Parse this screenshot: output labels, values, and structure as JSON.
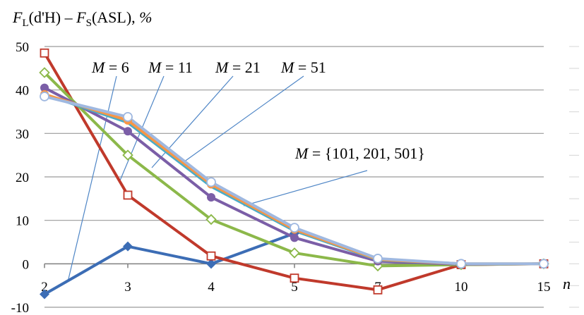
{
  "chart_data": {
    "type": "line",
    "title": "",
    "ylabel": "F_L(d'H) − F_S(ASL), %",
    "xlabel": "n",
    "categories": [
      "2",
      "3",
      "4",
      "5",
      "7",
      "10",
      "15"
    ],
    "ylim": [
      -10,
      50
    ],
    "yticks": [
      -10,
      0,
      10,
      20,
      30,
      40,
      50
    ],
    "grid": true,
    "legend": "none",
    "series": [
      {
        "name": "M = 6",
        "values": [
          -7,
          4,
          0,
          7,
          null,
          null,
          null
        ],
        "color": "#3c6db5",
        "marker": "diamond-filled"
      },
      {
        "name": "M = 11",
        "values": [
          48.5,
          15.8,
          1.8,
          -3.3,
          -6,
          -0.2,
          0
        ],
        "color": "#c0392b",
        "marker": "square-open"
      },
      {
        "name": "M = 21",
        "values": [
          44,
          25,
          10.2,
          2.5,
          -0.5,
          -0.2,
          0
        ],
        "color": "#8cb84a",
        "marker": "diamond-open"
      },
      {
        "name": "M = 51",
        "values": [
          40.5,
          30.5,
          15.3,
          6,
          0.6,
          -0.1,
          0
        ],
        "color": "#7b5ea7",
        "marker": "circle-filled"
      },
      {
        "name": "M = 101",
        "values": [
          39,
          32.5,
          17.8,
          7.6,
          0.9,
          0,
          0
        ],
        "color": "#4bacc6",
        "marker": "none"
      },
      {
        "name": "M = 201",
        "values": [
          39,
          33,
          18.3,
          7.9,
          1,
          0,
          0
        ],
        "color": "#f79646",
        "marker": "circle-filled"
      },
      {
        "name": "M = 501",
        "values": [
          38.5,
          33.8,
          18.8,
          8.3,
          1.2,
          0,
          0
        ],
        "color": "#9fb8e0",
        "marker": "circle-open"
      }
    ],
    "annotations": [
      {
        "text": "M = 6",
        "series": 0
      },
      {
        "text": "M = 11",
        "series": 1
      },
      {
        "text": "M = 21",
        "series": 2
      },
      {
        "text": "M = 51",
        "series": 3
      },
      {
        "text": "M = {101, 201, 501}",
        "series": 6
      }
    ]
  }
}
